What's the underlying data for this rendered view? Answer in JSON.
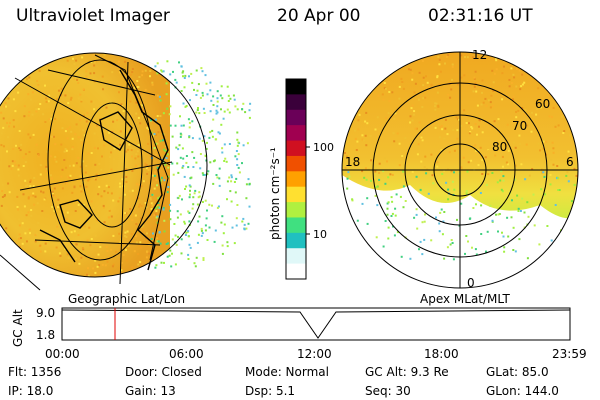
{
  "header": {
    "title": "Ultraviolet Imager",
    "date": "20 Apr 00",
    "time": "02:31:16 UT"
  },
  "colorbar": {
    "unit": "photon cm⁻²s⁻¹",
    "tick_labels": [
      "100",
      "10"
    ],
    "colors": [
      "#000000",
      "#3a003a",
      "#6a0058",
      "#a00050",
      "#d01020",
      "#f05000",
      "#ffa000",
      "#ffe030",
      "#b0f040",
      "#40e080",
      "#20c0c0",
      "#e0f8f8",
      "#ffffff"
    ]
  },
  "left_panel": {
    "label": "Geographic Lat/Lon"
  },
  "right_panel": {
    "label": "Apex MLat/MLT",
    "mlt_labels": {
      "top": "12",
      "left": "18",
      "right": "6",
      "bottom": "0"
    },
    "lat_labels": [
      "60",
      "70",
      "80"
    ]
  },
  "altitude_plot": {
    "ylabel": "GC Alt",
    "yticks": [
      "9.0",
      "1.8"
    ],
    "xticks": [
      "00:00",
      "06:00",
      "12:00",
      "18:00",
      "23:59"
    ],
    "marker_time": "02:31"
  },
  "info": {
    "flt": "Flt: 1356",
    "ip": "IP: 18.0",
    "door": "Door: Closed",
    "gain": "Gain: 13",
    "mode": "Mode: Normal",
    "dsp": "Dsp:    5.1",
    "gcalt": "GC Alt: 9.3 Re",
    "seq": "Seq: 30",
    "glat": "GLat:  85.0",
    "glon": "GLon: 144.0"
  }
}
